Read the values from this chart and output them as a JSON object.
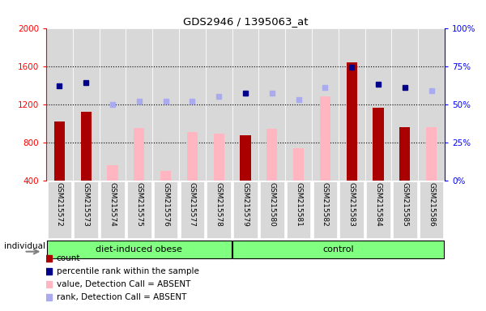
{
  "title": "GDS2946 / 1395063_at",
  "samples": [
    "GSM215572",
    "GSM215573",
    "GSM215574",
    "GSM215575",
    "GSM215576",
    "GSM215577",
    "GSM215578",
    "GSM215579",
    "GSM215580",
    "GSM215581",
    "GSM215582",
    "GSM215583",
    "GSM215584",
    "GSM215585",
    "GSM215586"
  ],
  "groups": [
    "diet-induced obese",
    "diet-induced obese",
    "diet-induced obese",
    "diet-induced obese",
    "diet-induced obese",
    "diet-induced obese",
    "diet-induced obese",
    "control",
    "control",
    "control",
    "control",
    "control",
    "control",
    "control",
    "control"
  ],
  "count_values": [
    1020,
    1120,
    null,
    null,
    null,
    null,
    null,
    870,
    null,
    null,
    null,
    1640,
    1160,
    960,
    null
  ],
  "count_absent_values": [
    null,
    null,
    560,
    950,
    500,
    910,
    890,
    null,
    940,
    740,
    1280,
    null,
    null,
    null,
    960
  ],
  "rank_present": [
    62,
    64,
    null,
    null,
    null,
    null,
    null,
    57,
    null,
    null,
    null,
    74,
    63,
    61,
    null
  ],
  "rank_absent": [
    null,
    null,
    50,
    52,
    52,
    52,
    55,
    null,
    57,
    53,
    61,
    null,
    null,
    null,
    59
  ],
  "ylim_left": [
    400,
    2000
  ],
  "ylim_right": [
    0,
    100
  ],
  "yticks_left": [
    400,
    800,
    1200,
    1600,
    2000
  ],
  "yticks_right": [
    0,
    25,
    50,
    75,
    100
  ],
  "bar_color_present": "#AA0000",
  "bar_color_absent": "#FFB6C1",
  "dot_color_present": "#00008B",
  "dot_color_absent": "#AAAAEE",
  "cell_bg": "#D8D8D8",
  "plot_bg": "#F0F0F0",
  "group_color": "#80FF80",
  "legend_items": [
    {
      "color": "#AA0000",
      "label": "count"
    },
    {
      "color": "#00008B",
      "label": "percentile rank within the sample"
    },
    {
      "color": "#FFB6C1",
      "label": "value, Detection Call = ABSENT"
    },
    {
      "color": "#AAAAEE",
      "label": "rank, Detection Call = ABSENT"
    }
  ]
}
